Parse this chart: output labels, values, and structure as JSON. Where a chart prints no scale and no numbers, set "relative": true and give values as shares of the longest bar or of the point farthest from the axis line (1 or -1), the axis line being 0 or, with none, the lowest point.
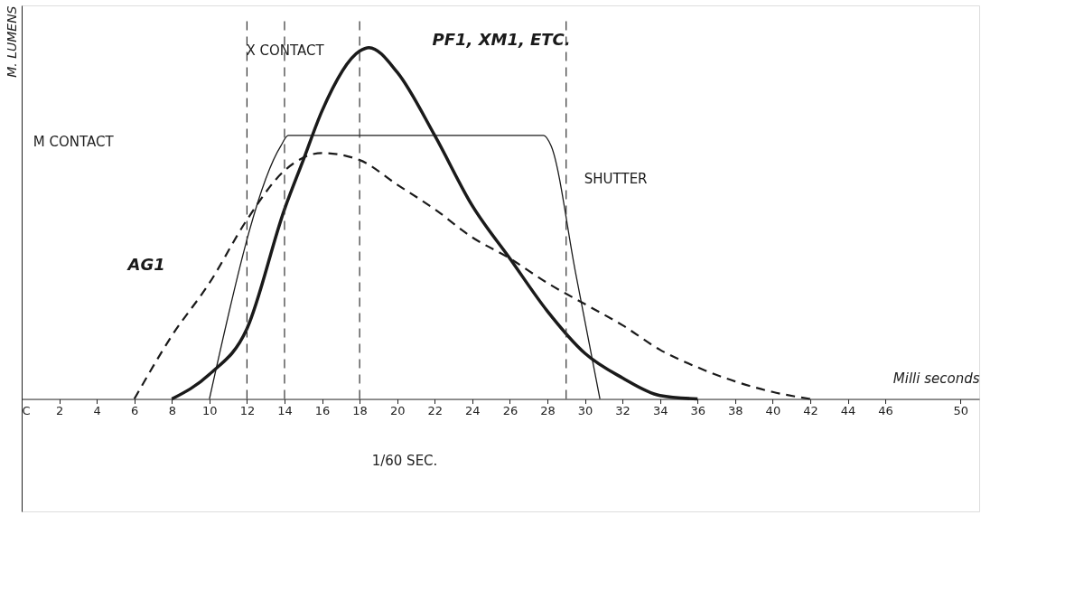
{
  "chart_data": {
    "type": "line",
    "relative": true,
    "xlabel": "Milli seconds",
    "ylabel": "M. LUMENS",
    "xlim": [
      0,
      51
    ],
    "xticks": [
      {
        "value": 0,
        "label": "C"
      },
      2,
      4,
      6,
      8,
      10,
      12,
      14,
      16,
      18,
      20,
      22,
      24,
      26,
      28,
      30,
      32,
      34,
      36,
      38,
      40,
      42,
      44,
      46,
      50
    ],
    "series": [
      {
        "name": "PF1, XM1, ETC.",
        "color": "#1a1a1a",
        "line_style": "solid",
        "x": [
          8,
          10,
          12,
          14,
          15,
          16,
          18,
          18.5,
          20,
          22,
          24,
          26,
          28,
          30,
          32,
          34,
          36
        ],
        "values": [
          0,
          0.07,
          0.2,
          0.54,
          0.68,
          0.82,
          0.99,
          1,
          0.93,
          0.75,
          0.55,
          0.4,
          0.25,
          0.13,
          0.06,
          0.01,
          0
        ]
      },
      {
        "name": "SHUTTER",
        "color": "#1a1a1a",
        "line_style": "solid",
        "x": [
          10,
          13.8,
          14.2,
          27.8,
          28.2,
          29.5,
          30.8
        ],
        "values": [
          0,
          0.72,
          0.75,
          0.75,
          0.72,
          0.36,
          0
        ]
      },
      {
        "name": "AG1",
        "color": "#1a1a1a",
        "line_style": "dashed",
        "x": [
          6,
          8,
          10,
          12,
          14,
          16,
          18,
          20,
          22,
          24,
          26,
          28,
          30,
          32,
          34,
          36,
          38,
          40,
          42
        ],
        "values": [
          0,
          0.18,
          0.33,
          0.51,
          0.65,
          0.7,
          0.68,
          0.61,
          0.54,
          0.46,
          0.4,
          0.33,
          0.27,
          0.21,
          0.14,
          0.09,
          0.05,
          0.02,
          0
        ]
      }
    ],
    "ref_lines": [
      {
        "axis": "x",
        "value": 12
      },
      {
        "axis": "x",
        "value": 14
      },
      {
        "axis": "x",
        "value": 18
      },
      {
        "axis": "x",
        "value": 29
      }
    ],
    "annotations": [
      "X CONTACT",
      "M CONTACT",
      "1/60 SEC."
    ]
  }
}
